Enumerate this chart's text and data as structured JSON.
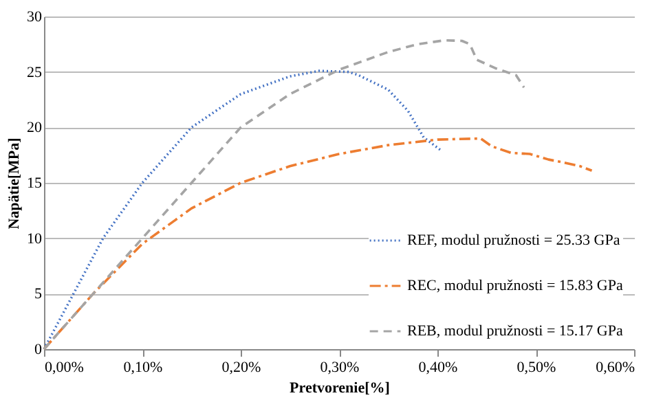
{
  "chart_data": {
    "type": "line",
    "xlabel": "Pretvorenie[%]",
    "ylabel": "Napätie[MPa]",
    "xlim": [
      0,
      0.6
    ],
    "ylim": [
      0,
      30
    ],
    "xticks": [
      {
        "value": 0,
        "label": "0,00%"
      },
      {
        "value": 0.1,
        "label": "0,10%"
      },
      {
        "value": 0.2,
        "label": "0,20%"
      },
      {
        "value": 0.3,
        "label": "0,30%"
      },
      {
        "value": 0.4,
        "label": "0,40%"
      },
      {
        "value": 0.5,
        "label": "0,50%"
      },
      {
        "value": 0.6,
        "label": "0,60%"
      }
    ],
    "yticks": [
      0,
      5,
      10,
      15,
      20,
      25,
      30
    ],
    "grid": "y",
    "legend": "bottom right",
    "marker": "none",
    "series": [
      {
        "name": "REF, modul pružnosti = 25.33 GPa",
        "color": "#4472c4",
        "line_style": "dotted",
        "x": [
          0,
          0.03,
          0.06,
          0.1,
          0.15,
          0.2,
          0.25,
          0.28,
          0.31,
          0.32,
          0.35,
          0.37,
          0.386,
          0.404
        ],
        "values": [
          0,
          5,
          10,
          15,
          20,
          23,
          24.6,
          25.1,
          25,
          24.7,
          23.4,
          21.5,
          19.1,
          17.9
        ]
      },
      {
        "name": "REC, modul pružnosti = 15.83 GPa",
        "color": "#ed7d31",
        "line_style": "dashdot",
        "x": [
          0,
          0.05,
          0.1,
          0.15,
          0.2,
          0.25,
          0.3,
          0.35,
          0.4,
          0.444,
          0.455,
          0.475,
          0.494,
          0.513,
          0.53,
          0.545,
          0.557
        ],
        "values": [
          0,
          5,
          9.5,
          12.7,
          15,
          16.5,
          17.6,
          18.4,
          18.9,
          19,
          18.3,
          17.7,
          17.6,
          17.1,
          16.8,
          16.5,
          16.1
        ]
      },
      {
        "name": "REB, modul pružnosti = 15.17 GPa",
        "color": "#a5a5a5",
        "line_style": "dashed",
        "x": [
          0,
          0.05,
          0.1,
          0.15,
          0.2,
          0.25,
          0.3,
          0.35,
          0.38,
          0.407,
          0.425,
          0.433,
          0.44,
          0.46,
          0.48,
          0.488
        ],
        "values": [
          0,
          5,
          10,
          15,
          20,
          23,
          25.2,
          26.8,
          27.5,
          27.85,
          27.8,
          27.5,
          26.1,
          25.3,
          24.7,
          23.6
        ]
      }
    ]
  }
}
